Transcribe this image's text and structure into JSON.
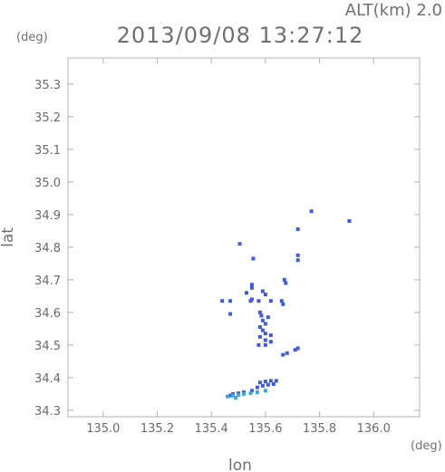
{
  "header": {
    "altitude": "ALT(km) 2.0",
    "timestamp": "2013/09/08 13:27:12",
    "y_unit": "(deg)",
    "x_unit": "(deg)"
  },
  "chart_data": {
    "type": "scatter",
    "title": "2013/09/08 13:27:12",
    "xlabel": "lon",
    "ylabel": "lat",
    "xlim": [
      134.87,
      136.17
    ],
    "ylim": [
      34.28,
      35.38
    ],
    "grid": false,
    "x_ticks": [
      135.0,
      135.2,
      135.4,
      135.6,
      135.8,
      136.0
    ],
    "x_tick_labels": [
      "135.0",
      "135.2",
      "135.4",
      "135.6",
      "135.8",
      "136.0"
    ],
    "y_ticks": [
      34.3,
      34.4,
      34.5,
      34.6,
      34.7,
      34.8,
      34.9,
      35.0,
      35.1,
      35.2,
      35.3
    ],
    "y_tick_labels": [
      "34.3",
      "34.4",
      "34.5",
      "34.6",
      "34.7",
      "34.8",
      "34.9",
      "35.0",
      "35.1",
      "35.2",
      "35.3"
    ],
    "colors": {
      "blue": "#3f5ae8",
      "light_blue": "#3aa7e8",
      "axis": "#b0b0b0"
    },
    "series": [
      {
        "color": "#3f5ae8",
        "points": [
          [
            135.77,
            34.91
          ],
          [
            135.91,
            34.88
          ],
          [
            135.72,
            34.855
          ],
          [
            135.505,
            34.81
          ],
          [
            135.72,
            34.775
          ],
          [
            135.72,
            34.76
          ],
          [
            135.555,
            34.765
          ],
          [
            135.67,
            34.7
          ],
          [
            135.675,
            34.69
          ],
          [
            135.55,
            34.685
          ],
          [
            135.55,
            34.675
          ],
          [
            135.59,
            34.665
          ],
          [
            135.53,
            34.66
          ],
          [
            135.6,
            34.655
          ],
          [
            135.44,
            34.635
          ],
          [
            135.47,
            34.635
          ],
          [
            135.545,
            34.635
          ],
          [
            135.55,
            34.64
          ],
          [
            135.575,
            34.635
          ],
          [
            135.62,
            34.635
          ],
          [
            135.66,
            34.635
          ],
          [
            135.665,
            34.625
          ],
          [
            135.47,
            34.595
          ],
          [
            135.58,
            34.6
          ],
          [
            135.585,
            34.59
          ],
          [
            135.61,
            34.585
          ],
          [
            135.59,
            34.575
          ],
          [
            135.6,
            34.565
          ],
          [
            135.58,
            34.555
          ],
          [
            135.59,
            34.545
          ],
          [
            135.6,
            34.535
          ],
          [
            135.62,
            34.53
          ],
          [
            135.58,
            34.525
          ],
          [
            135.6,
            34.515
          ],
          [
            135.62,
            34.51
          ],
          [
            135.575,
            34.5
          ],
          [
            135.6,
            34.5
          ],
          [
            135.72,
            34.49
          ],
          [
            135.71,
            34.485
          ],
          [
            135.68,
            34.475
          ],
          [
            135.665,
            34.47
          ],
          [
            135.58,
            34.385
          ],
          [
            135.6,
            34.388
          ],
          [
            135.62,
            34.39
          ],
          [
            135.64,
            34.39
          ],
          [
            135.59,
            34.375
          ],
          [
            135.61,
            34.378
          ],
          [
            135.63,
            34.38
          ],
          [
            135.57,
            34.37
          ],
          [
            135.55,
            34.36
          ],
          [
            135.52,
            34.355
          ],
          [
            135.48,
            34.35
          ],
          [
            135.47,
            34.345
          ],
          [
            135.5,
            34.352
          ]
        ]
      },
      {
        "color": "#3aa7e8",
        "points": [
          [
            135.46,
            34.342
          ],
          [
            135.48,
            34.345
          ],
          [
            135.5,
            34.347
          ],
          [
            135.52,
            34.35
          ],
          [
            135.545,
            34.352
          ],
          [
            135.57,
            34.355
          ],
          [
            135.6,
            34.36
          ],
          [
            135.49,
            34.338
          ]
        ]
      }
    ]
  }
}
